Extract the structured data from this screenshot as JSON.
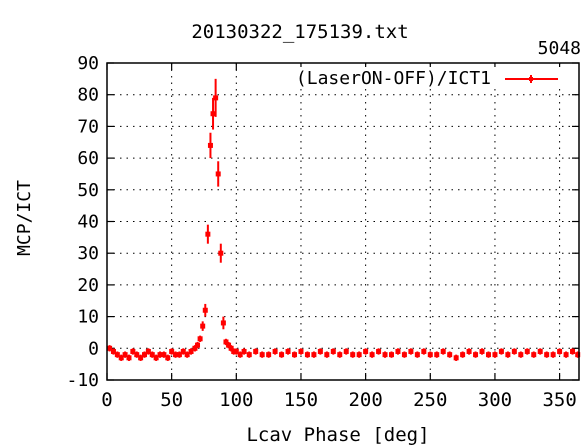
{
  "chart_data": {
    "type": "scatter",
    "title": "20130322_175139.txt",
    "corner_label": "5048",
    "xlabel": "Lcav Phase [deg]",
    "ylabel": "MCP/ICT",
    "xlim": [
      0,
      365
    ],
    "ylim": [
      -10,
      90
    ],
    "xticks": [
      0,
      50,
      100,
      150,
      200,
      250,
      300,
      350
    ],
    "yticks": [
      -10,
      0,
      10,
      20,
      30,
      40,
      50,
      60,
      70,
      80,
      90
    ],
    "grid": true,
    "legend_position": "top-right",
    "series": [
      {
        "name": "(LaserON-OFF)/ICT1",
        "color": "#ff0000",
        "x": [
          2,
          5,
          8,
          11,
          14,
          17,
          20,
          23,
          26,
          29,
          32,
          35,
          38,
          41,
          44,
          47,
          50,
          53,
          56,
          59,
          62,
          65,
          68,
          70,
          72,
          74,
          76,
          78,
          80,
          82,
          84,
          86,
          88,
          90,
          92,
          94,
          96,
          98,
          100,
          103,
          106,
          110,
          115,
          120,
          125,
          130,
          135,
          140,
          145,
          150,
          155,
          160,
          165,
          170,
          175,
          180,
          185,
          190,
          195,
          200,
          205,
          210,
          215,
          220,
          225,
          230,
          235,
          240,
          245,
          250,
          255,
          260,
          265,
          270,
          275,
          280,
          285,
          290,
          295,
          300,
          305,
          310,
          315,
          320,
          325,
          330,
          335,
          340,
          345,
          350,
          355,
          360,
          364
        ],
        "y": [
          0,
          -1,
          -2,
          -3,
          -2,
          -3,
          -1,
          -2,
          -3,
          -2,
          -1,
          -2,
          -3,
          -2,
          -2,
          -3,
          -1,
          -2,
          -2,
          -1,
          -2,
          -1,
          0,
          1,
          3,
          7,
          12,
          36,
          64,
          74,
          79,
          55,
          30,
          8,
          2,
          1,
          0,
          -1,
          -1,
          -2,
          -1,
          -2,
          -1,
          -2,
          -2,
          -1,
          -2,
          -1,
          -2,
          -1,
          -2,
          -2,
          -1,
          -2,
          -1,
          -2,
          -1,
          -2,
          -2,
          -1,
          -2,
          -1,
          -2,
          -2,
          -1,
          -2,
          -1,
          -2,
          -1,
          -2,
          -2,
          -1,
          -2,
          -3,
          -2,
          -1,
          -2,
          -1,
          -2,
          -2,
          -1,
          -2,
          -1,
          -2,
          -1,
          -2,
          -1,
          -2,
          -2,
          -1,
          -2,
          -1,
          -2
        ],
        "err": [
          1,
          1,
          1,
          1,
          1,
          1,
          1,
          1,
          1,
          1,
          1,
          1,
          1,
          1,
          1,
          1,
          1,
          1,
          1,
          1,
          1,
          1,
          1,
          1,
          1,
          1.5,
          2,
          3,
          4,
          5,
          6,
          4,
          3,
          2,
          1,
          1,
          1,
          1,
          1,
          1,
          1,
          1,
          1,
          1,
          1,
          1,
          1,
          1,
          1,
          1,
          1,
          1,
          1,
          1,
          1,
          1,
          1,
          1,
          1,
          1,
          1,
          1,
          1,
          1,
          1,
          1,
          1,
          1,
          1,
          1,
          1,
          1,
          1,
          1,
          1,
          1,
          1,
          1,
          1,
          1,
          1,
          1,
          1,
          1,
          1,
          1,
          1,
          1,
          1,
          1,
          1,
          1,
          1
        ]
      }
    ]
  }
}
